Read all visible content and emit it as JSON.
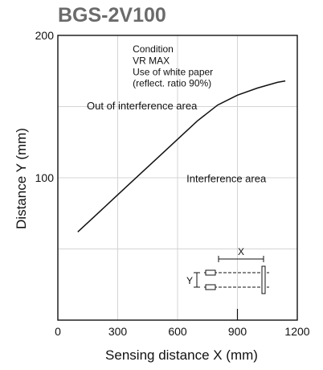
{
  "chart_data": {
    "type": "line",
    "title": "BGS-2V100",
    "xlabel": "Sensing distance X (mm)",
    "ylabel": "Distance Y (mm)",
    "xlim": [
      0,
      1200
    ],
    "ylim": [
      0,
      200
    ],
    "x_ticks": [
      "0",
      "300",
      "600",
      "900",
      "1200"
    ],
    "y_ticks": [
      "100",
      "200"
    ],
    "grid": true,
    "series": [
      {
        "x": [
          100,
          200,
          300,
          400,
          500,
          600,
          700,
          800,
          900,
          1000,
          1100,
          1140
        ],
        "y": [
          62,
          75,
          88,
          101,
          114,
          127,
          140,
          151,
          158,
          163,
          167,
          168
        ]
      }
    ],
    "annotations": {
      "condition": [
        "Condition",
        "VR MAX",
        "Use of white paper",
        "(reflect. ratio 90%)"
      ],
      "out_area": "Out of interference area",
      "in_area": "Interference area",
      "inset_x_label": "X",
      "inset_y_label": "Y"
    }
  }
}
